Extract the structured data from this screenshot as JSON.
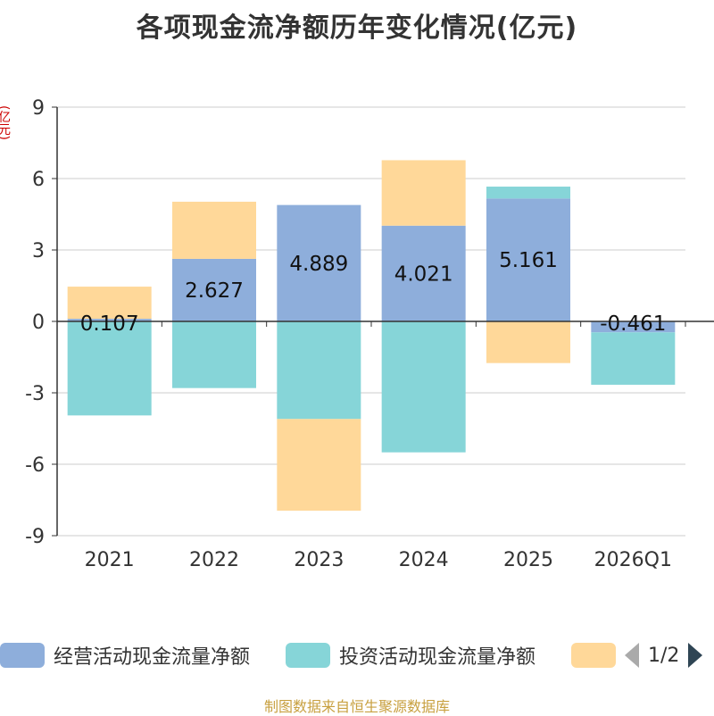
{
  "title": "各项现金流净额历年变化情况(亿元)",
  "source": "制图数据来自恒生聚源数据库",
  "legend": {
    "items": [
      {
        "label": "经营活动现金流量净额",
        "color": "#8eaedb"
      },
      {
        "label": "投资活动现金流量净额",
        "color": "#86d5d8"
      },
      {
        "label": "",
        "color": "#ffd899"
      }
    ],
    "page": "1/2"
  },
  "chart_data": {
    "type": "bar",
    "stacked": true,
    "ylabel": "(亿元)",
    "categories": [
      "2021",
      "2022",
      "2023",
      "2024",
      "2025",
      "2026Q1"
    ],
    "ylim": [
      -9,
      9
    ],
    "yticks": [
      -9,
      -6,
      -3,
      0,
      3,
      6,
      9
    ],
    "series": [
      {
        "name": "经营活动现金流量净额",
        "color": "#8eaedb",
        "values": [
          0.11,
          2.627,
          4.889,
          4.021,
          5.161,
          -0.461
        ],
        "labels": [
          "0.107",
          "2.627",
          "4.889",
          "4.021",
          "5.161",
          "-0.461"
        ]
      },
      {
        "name": "投资活动现金流量净额",
        "color": "#86d5d8",
        "values": [
          -3.95,
          -2.8,
          -4.1,
          -5.5,
          0.5,
          -2.2
        ]
      },
      {
        "color": "#ffd899",
        "values": [
          1.35,
          2.4,
          -3.85,
          2.75,
          -1.75,
          0
        ]
      }
    ]
  }
}
